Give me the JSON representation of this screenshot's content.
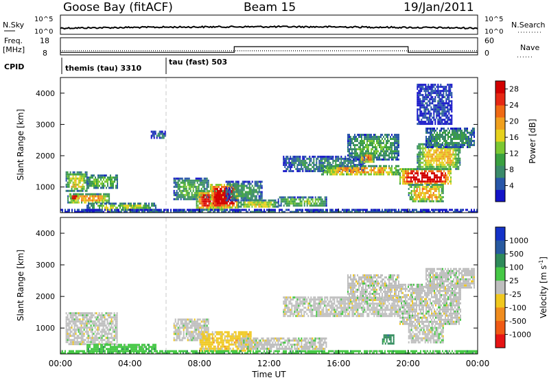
{
  "header": {
    "station": "Goose Bay (fitACF)",
    "beam": "Beam 15",
    "date": "19/Jan/2011"
  },
  "top_panels": {
    "nsky_label": "N.Sky",
    "nsearch_label": "N.Search",
    "nsky_ticks": [
      "10^5",
      "10^0"
    ],
    "nsearch_ticks": [
      "10^5",
      "10^0"
    ],
    "freq_label": "Freq.",
    "freq_unit": "[MHz]",
    "freq_ticks": [
      "18",
      "8"
    ],
    "nave_label": "Nave",
    "nave_ticks": [
      "60",
      "0"
    ],
    "cpid_label": "CPID",
    "cpid_segments": [
      {
        "label": "themis (tau) 3310",
        "start_hour": 0,
        "end_hour": 6
      },
      {
        "label": "tau (fast) 503",
        "start_hour": 6,
        "end_hour": 24
      }
    ],
    "nave_step": [
      {
        "start_hour": 0,
        "end_hour": 10,
        "value": 5
      },
      {
        "start_hour": 10,
        "end_hour": 20,
        "value": 30
      },
      {
        "start_hour": 20,
        "end_hour": 24,
        "value": 5
      }
    ]
  },
  "chart_data": [
    {
      "type": "heatmap",
      "panel": "power",
      "xlabel": "Time UT",
      "ylabel": "Slant Range [km]",
      "xlim": [
        0,
        24
      ],
      "ylim": [
        180,
        4500
      ],
      "y_ticks": [
        "1000",
        "2000",
        "3000",
        "4000"
      ],
      "colorbar": {
        "label": "Power [dB]",
        "ticks": [
          "4",
          "8",
          "12",
          "16",
          "20",
          "24",
          "28"
        ],
        "colors": [
          "#1414c8",
          "#2856a8",
          "#3a8a6a",
          "#3aa040",
          "#7cc832",
          "#e6d21e",
          "#f0a01e",
          "#f06a14",
          "#e62814",
          "#d20000"
        ],
        "range": [
          0,
          30
        ]
      },
      "regions": [
        {
          "t0": 0.3,
          "t1": 1.5,
          "r0": 900,
          "r1": 1500,
          "level": 0.45
        },
        {
          "t0": 1.5,
          "t1": 3.3,
          "r0": 1000,
          "r1": 1400,
          "level": 0.35
        },
        {
          "t0": 0.4,
          "t1": 2.8,
          "r0": 500,
          "r1": 800,
          "level": 0.55
        },
        {
          "t0": 0.5,
          "t1": 1.0,
          "r0": 600,
          "r1": 800,
          "level": 0.8
        },
        {
          "t0": 1.5,
          "t1": 5.5,
          "r0": 250,
          "r1": 500,
          "level": 0.4
        },
        {
          "t0": 5.2,
          "t1": 6.0,
          "r0": 2550,
          "r1": 2800,
          "level": 0.15
        },
        {
          "t0": 6.5,
          "t1": 8.5,
          "r0": 600,
          "r1": 1300,
          "level": 0.3
        },
        {
          "t0": 7.8,
          "t1": 9.5,
          "r0": 300,
          "r1": 900,
          "level": 0.75
        },
        {
          "t0": 8.6,
          "t1": 10.2,
          "r0": 350,
          "r1": 1100,
          "level": 0.9
        },
        {
          "t0": 9.5,
          "t1": 11.6,
          "r0": 600,
          "r1": 1200,
          "level": 0.25
        },
        {
          "t0": 10.2,
          "t1": 12.5,
          "r0": 350,
          "r1": 600,
          "level": 0.45
        },
        {
          "t0": 12.5,
          "t1": 15.3,
          "r0": 400,
          "r1": 700,
          "level": 0.35
        },
        {
          "t0": 12.8,
          "t1": 17.5,
          "r0": 1500,
          "r1": 2000,
          "level": 0.2
        },
        {
          "t0": 15.0,
          "t1": 19.5,
          "r0": 1400,
          "r1": 1700,
          "level": 0.55
        },
        {
          "t0": 16.5,
          "t1": 19.5,
          "r0": 1900,
          "r1": 2700,
          "level": 0.3
        },
        {
          "t0": 17.2,
          "t1": 18.0,
          "r0": 1800,
          "r1": 2100,
          "level": 0.6
        },
        {
          "t0": 19.5,
          "t1": 22.5,
          "r0": 1100,
          "r1": 1600,
          "level": 0.85
        },
        {
          "t0": 20.5,
          "t1": 23.0,
          "r0": 1600,
          "r1": 2400,
          "level": 0.5
        },
        {
          "t0": 21.0,
          "t1": 23.8,
          "r0": 2300,
          "r1": 2900,
          "level": 0.25
        },
        {
          "t0": 20.0,
          "t1": 22.0,
          "r0": 550,
          "r1": 1100,
          "level": 0.55
        },
        {
          "t0": 20.5,
          "t1": 22.5,
          "r0": 3000,
          "r1": 4300,
          "level": 0.1
        },
        {
          "t0": 0.0,
          "t1": 24.0,
          "r0": 180,
          "r1": 300,
          "level": 0.15
        }
      ]
    },
    {
      "type": "heatmap",
      "panel": "velocity",
      "xlabel": "Time UT",
      "ylabel": "Slant Range [km]",
      "xlim": [
        0,
        24
      ],
      "ylim": [
        180,
        4500
      ],
      "y_ticks": [
        "1000",
        "2000",
        "3000",
        "4000"
      ],
      "x_ticks": [
        "00:00",
        "04:00",
        "08:00",
        "12:00",
        "16:00",
        "20:00",
        "00:00"
      ],
      "colorbar": {
        "label": "Velocity [m s",
        "label_sup": "-1",
        "label_end": "]",
        "ticks": [
          "1000",
          "500",
          "100",
          "25",
          "-25",
          "-100",
          "-500",
          "-1000"
        ],
        "colors": [
          "#1432c8",
          "#285aa0",
          "#2e8a5a",
          "#46c846",
          "#bebebe",
          "#f0c81e",
          "#f08c1e",
          "#f05a14",
          "#e61414"
        ]
      },
      "regions": [
        {
          "t0": 0.3,
          "t1": 3.3,
          "r0": 500,
          "r1": 1500,
          "cls": 4
        },
        {
          "t0": 1.5,
          "t1": 5.5,
          "r0": 250,
          "r1": 500,
          "cls": 3
        },
        {
          "t0": 6.5,
          "t1": 8.5,
          "r0": 600,
          "r1": 1300,
          "cls": 4
        },
        {
          "t0": 8.0,
          "t1": 11.0,
          "r0": 300,
          "r1": 900,
          "cls": 5
        },
        {
          "t0": 10.2,
          "t1": 15.3,
          "r0": 350,
          "r1": 700,
          "cls": 4
        },
        {
          "t0": 12.8,
          "t1": 19.5,
          "r0": 1400,
          "r1": 2000,
          "cls": 4
        },
        {
          "t0": 16.5,
          "t1": 19.5,
          "r0": 1900,
          "r1": 2700,
          "cls": 4
        },
        {
          "t0": 19.5,
          "t1": 23.0,
          "r0": 1100,
          "r1": 2400,
          "cls": 4
        },
        {
          "t0": 21.0,
          "t1": 23.8,
          "r0": 2300,
          "r1": 2900,
          "cls": 4
        },
        {
          "t0": 20.0,
          "t1": 22.0,
          "r0": 550,
          "r1": 1100,
          "cls": 4
        },
        {
          "t0": 18.5,
          "t1": 19.2,
          "r0": 500,
          "r1": 800,
          "cls": 2
        },
        {
          "t0": 0.0,
          "t1": 24.0,
          "r0": 180,
          "r1": 300,
          "cls": 3
        }
      ]
    }
  ]
}
